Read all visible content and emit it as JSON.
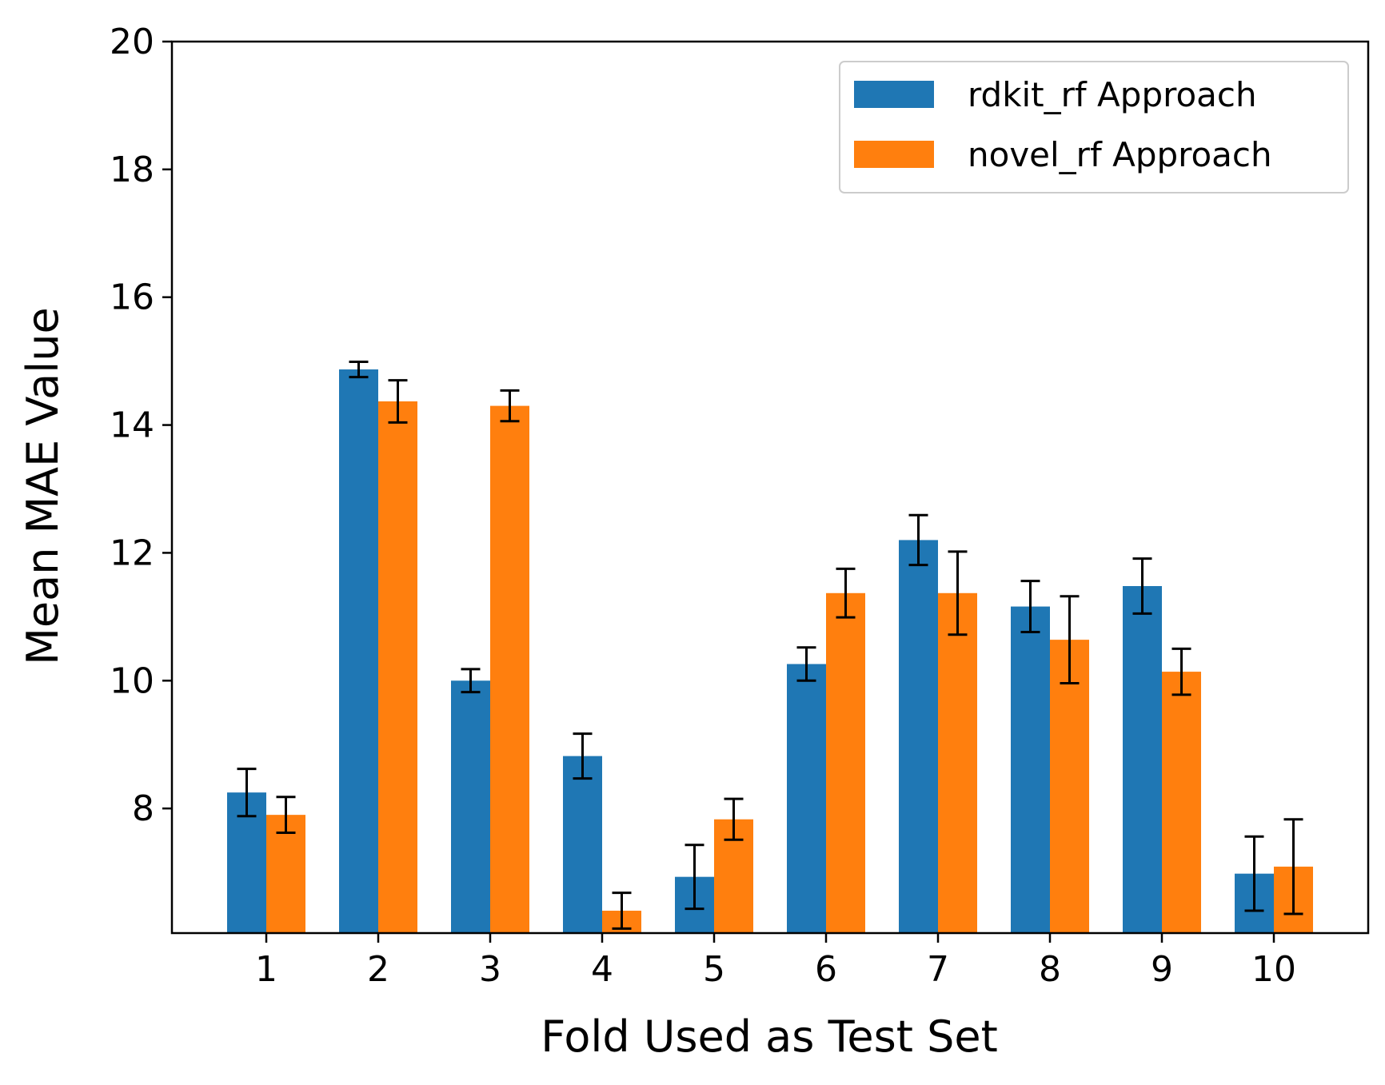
{
  "chart_data": {
    "type": "bar",
    "xlabel": "Fold Used as Test Set",
    "ylabel": "Mean MAE Value",
    "categories": [
      "1",
      "2",
      "3",
      "4",
      "5",
      "6",
      "7",
      "8",
      "9",
      "10"
    ],
    "ylim": [
      6.05,
      20
    ],
    "yticks": [
      8,
      10,
      12,
      14,
      16,
      18,
      20
    ],
    "legend_position": "top-right",
    "grid": false,
    "series": [
      {
        "name": "rdkit_rf Approach",
        "color": "#1f77b4",
        "values": [
          8.25,
          14.87,
          10.0,
          8.82,
          6.93,
          10.26,
          12.2,
          11.16,
          11.48,
          6.98
        ],
        "errors": [
          0.37,
          0.12,
          0.18,
          0.35,
          0.5,
          0.26,
          0.39,
          0.4,
          0.43,
          0.58
        ]
      },
      {
        "name": "novel_rf Approach",
        "color": "#ff7f0e",
        "values": [
          7.9,
          14.37,
          14.3,
          6.4,
          7.83,
          11.37,
          11.37,
          10.64,
          10.14,
          7.09
        ],
        "errors": [
          0.28,
          0.33,
          0.24,
          0.28,
          0.32,
          0.38,
          0.65,
          0.68,
          0.36,
          0.74
        ]
      }
    ]
  }
}
